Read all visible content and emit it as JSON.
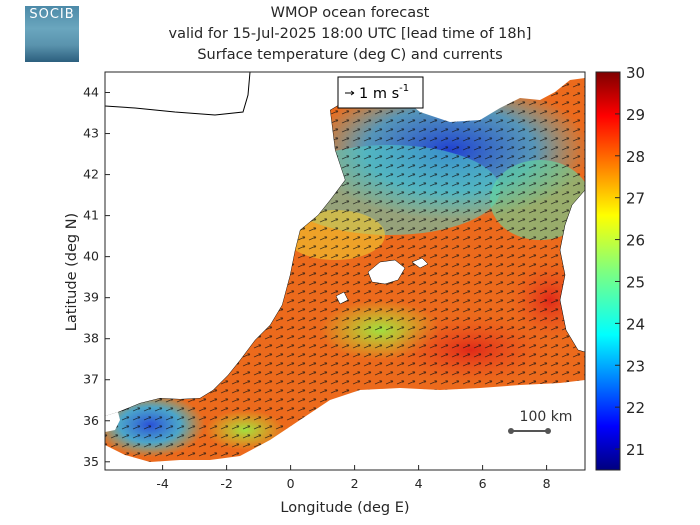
{
  "header": {
    "logo_text": "SOCIB",
    "title_line1": "WMOP ocean forecast",
    "title_line2": "valid for 15-Jul-2025 18:00 UTC [lead time of 18h]",
    "title_line3": "Surface temperature (deg C) and currents"
  },
  "map": {
    "xlabel": "Longitude (deg E)",
    "ylabel": "Latitude (deg N)",
    "x_ticks": [
      "-4",
      "-2",
      "0",
      "2",
      "4",
      "6",
      "8"
    ],
    "y_ticks": [
      "35",
      "36",
      "37",
      "38",
      "39",
      "40",
      "41",
      "42",
      "43",
      "44"
    ],
    "xlim": [
      -5.8,
      9.2
    ],
    "ylim": [
      34.8,
      44.5
    ],
    "vector_key": {
      "label_main": "1 m s",
      "label_exp": "-1"
    },
    "scale_bar": {
      "label": "100 km"
    }
  },
  "colorbar": {
    "ticks": [
      "21",
      "22",
      "23",
      "24",
      "25",
      "26",
      "27",
      "28",
      "29",
      "30"
    ],
    "range": [
      20.5,
      30
    ],
    "colormap": "jet"
  },
  "colors": {
    "land": "#ffffff",
    "coastline": "#000000",
    "warm": "#e8491d",
    "cold": "#1a3cc8"
  }
}
